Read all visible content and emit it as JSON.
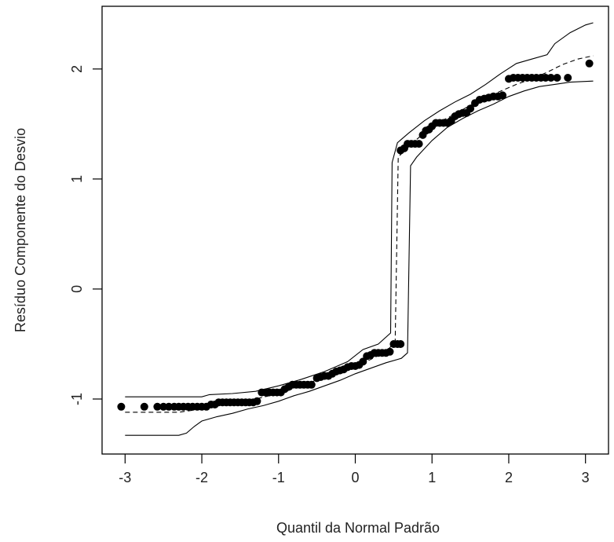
{
  "chart_data": {
    "type": "scatter",
    "title": "",
    "xlabel": "Quantil da Normal Padrão",
    "ylabel": "Resíduo Componente do Desvio",
    "xlim": [
      -3.3,
      3.3
    ],
    "ylim": [
      -1.5,
      2.57
    ],
    "xticks": [
      -3,
      -2,
      -1,
      0,
      1,
      2,
      3
    ],
    "yticks": [
      -1,
      0,
      1,
      2
    ],
    "xtick_labels": [
      "-3",
      "-2",
      "-1",
      "0",
      "1",
      "2",
      "3"
    ],
    "ytick_labels": [
      "-1",
      "0",
      "1",
      "2"
    ],
    "grid": false,
    "legend": "none",
    "point_color": "#000000",
    "line_color": "#000000",
    "points": [
      [
        -3.05,
        -1.07
      ],
      [
        -2.75,
        -1.07
      ],
      [
        -2.58,
        -1.07
      ],
      [
        -2.5,
        -1.07
      ],
      [
        -2.43,
        -1.07
      ],
      [
        -2.36,
        -1.07
      ],
      [
        -2.3,
        -1.07
      ],
      [
        -2.24,
        -1.07
      ],
      [
        -2.18,
        -1.07
      ],
      [
        -2.12,
        -1.07
      ],
      [
        -2.06,
        -1.07
      ],
      [
        -2.0,
        -1.07
      ],
      [
        -1.94,
        -1.07
      ],
      [
        -1.88,
        -1.05
      ],
      [
        -1.83,
        -1.05
      ],
      [
        -1.78,
        -1.03
      ],
      [
        -1.73,
        -1.03
      ],
      [
        -1.68,
        -1.03
      ],
      [
        -1.63,
        -1.03
      ],
      [
        -1.58,
        -1.03
      ],
      [
        -1.53,
        -1.03
      ],
      [
        -1.48,
        -1.03
      ],
      [
        -1.43,
        -1.03
      ],
      [
        -1.38,
        -1.03
      ],
      [
        -1.33,
        -1.03
      ],
      [
        -1.28,
        -1.02
      ],
      [
        -1.22,
        -0.94
      ],
      [
        -1.17,
        -0.94
      ],
      [
        -1.12,
        -0.94
      ],
      [
        -1.07,
        -0.94
      ],
      [
        -1.02,
        -0.94
      ],
      [
        -0.97,
        -0.94
      ],
      [
        -0.92,
        -0.91
      ],
      [
        -0.87,
        -0.89
      ],
      [
        -0.82,
        -0.87
      ],
      [
        -0.77,
        -0.87
      ],
      [
        -0.72,
        -0.87
      ],
      [
        -0.67,
        -0.87
      ],
      [
        -0.62,
        -0.87
      ],
      [
        -0.57,
        -0.87
      ],
      [
        -0.5,
        -0.81
      ],
      [
        -0.45,
        -0.8
      ],
      [
        -0.4,
        -0.79
      ],
      [
        -0.35,
        -0.79
      ],
      [
        -0.3,
        -0.77
      ],
      [
        -0.25,
        -0.75
      ],
      [
        -0.2,
        -0.74
      ],
      [
        -0.15,
        -0.73
      ],
      [
        -0.1,
        -0.71
      ],
      [
        -0.05,
        -0.7
      ],
      [
        0.0,
        -0.7
      ],
      [
        0.05,
        -0.69
      ],
      [
        0.1,
        -0.66
      ],
      [
        0.15,
        -0.61
      ],
      [
        0.2,
        -0.6
      ],
      [
        0.25,
        -0.58
      ],
      [
        0.3,
        -0.58
      ],
      [
        0.35,
        -0.58
      ],
      [
        0.4,
        -0.58
      ],
      [
        0.45,
        -0.57
      ],
      [
        0.5,
        -0.5
      ],
      [
        0.55,
        -0.5
      ],
      [
        0.59,
        -0.5
      ],
      [
        0.59,
        1.26
      ],
      [
        0.64,
        1.28
      ],
      [
        0.68,
        1.32
      ],
      [
        0.73,
        1.32
      ],
      [
        0.78,
        1.32
      ],
      [
        0.83,
        1.32
      ],
      [
        0.88,
        1.4
      ],
      [
        0.92,
        1.44
      ],
      [
        0.96,
        1.45
      ],
      [
        1.0,
        1.48
      ],
      [
        1.05,
        1.51
      ],
      [
        1.1,
        1.51
      ],
      [
        1.15,
        1.51
      ],
      [
        1.2,
        1.51
      ],
      [
        1.25,
        1.53
      ],
      [
        1.3,
        1.57
      ],
      [
        1.35,
        1.59
      ],
      [
        1.4,
        1.6
      ],
      [
        1.45,
        1.6
      ],
      [
        1.5,
        1.64
      ],
      [
        1.56,
        1.69
      ],
      [
        1.62,
        1.72
      ],
      [
        1.68,
        1.73
      ],
      [
        1.74,
        1.74
      ],
      [
        1.8,
        1.75
      ],
      [
        1.86,
        1.75
      ],
      [
        1.92,
        1.76
      ],
      [
        2.0,
        1.91
      ],
      [
        2.06,
        1.92
      ],
      [
        2.12,
        1.92
      ],
      [
        2.18,
        1.92
      ],
      [
        2.24,
        1.92
      ],
      [
        2.3,
        1.92
      ],
      [
        2.36,
        1.92
      ],
      [
        2.42,
        1.92
      ],
      [
        2.48,
        1.92
      ],
      [
        2.55,
        1.92
      ],
      [
        2.63,
        1.92
      ],
      [
        2.77,
        1.92
      ],
      [
        3.05,
        2.05
      ]
    ],
    "envelope_lower": [
      [
        -3.0,
        -1.33
      ],
      [
        -2.3,
        -1.33
      ],
      [
        -2.2,
        -1.31
      ],
      [
        -2.1,
        -1.25
      ],
      [
        -2.0,
        -1.2
      ],
      [
        -1.8,
        -1.16
      ],
      [
        -1.6,
        -1.13
      ],
      [
        -1.4,
        -1.09
      ],
      [
        -1.2,
        -1.06
      ],
      [
        -1.0,
        -1.02
      ],
      [
        -0.8,
        -0.97
      ],
      [
        -0.6,
        -0.93
      ],
      [
        -0.4,
        -0.88
      ],
      [
        -0.2,
        -0.83
      ],
      [
        0.0,
        -0.77
      ],
      [
        0.2,
        -0.72
      ],
      [
        0.4,
        -0.67
      ],
      [
        0.6,
        -0.63
      ],
      [
        0.68,
        -0.58
      ],
      [
        0.72,
        1.12
      ],
      [
        0.8,
        1.2
      ],
      [
        1.0,
        1.35
      ],
      [
        1.2,
        1.47
      ],
      [
        1.4,
        1.55
      ],
      [
        1.6,
        1.62
      ],
      [
        1.8,
        1.68
      ],
      [
        2.0,
        1.75
      ],
      [
        2.2,
        1.8
      ],
      [
        2.4,
        1.84
      ],
      [
        2.6,
        1.86
      ],
      [
        2.8,
        1.88
      ],
      [
        3.1,
        1.89
      ]
    ],
    "envelope_median": [
      [
        -3.0,
        -1.12
      ],
      [
        -2.3,
        -1.12
      ],
      [
        -2.1,
        -1.1
      ],
      [
        -1.9,
        -1.07
      ],
      [
        -1.6,
        -1.04
      ],
      [
        -1.3,
        -1.0
      ],
      [
        -1.0,
        -0.95
      ],
      [
        -0.7,
        -0.88
      ],
      [
        -0.4,
        -0.8
      ],
      [
        -0.1,
        -0.73
      ],
      [
        0.2,
        -0.64
      ],
      [
        0.4,
        -0.57
      ],
      [
        0.52,
        -0.48
      ],
      [
        0.56,
        1.2
      ],
      [
        0.7,
        1.3
      ],
      [
        0.9,
        1.42
      ],
      [
        1.1,
        1.52
      ],
      [
        1.3,
        1.59
      ],
      [
        1.5,
        1.67
      ],
      [
        1.7,
        1.74
      ],
      [
        1.9,
        1.8
      ],
      [
        2.1,
        1.86
      ],
      [
        2.3,
        1.91
      ],
      [
        2.5,
        1.97
      ],
      [
        2.7,
        2.04
      ],
      [
        2.9,
        2.09
      ],
      [
        3.1,
        2.12
      ]
    ],
    "envelope_upper": [
      [
        -3.0,
        -0.98
      ],
      [
        -2.0,
        -0.98
      ],
      [
        -1.9,
        -0.96
      ],
      [
        -1.6,
        -0.95
      ],
      [
        -1.3,
        -0.93
      ],
      [
        -1.0,
        -0.88
      ],
      [
        -0.7,
        -0.82
      ],
      [
        -0.4,
        -0.75
      ],
      [
        -0.1,
        -0.66
      ],
      [
        0.1,
        -0.55
      ],
      [
        0.3,
        -0.5
      ],
      [
        0.46,
        -0.4
      ],
      [
        0.48,
        1.15
      ],
      [
        0.55,
        1.33
      ],
      [
        0.7,
        1.42
      ],
      [
        0.9,
        1.53
      ],
      [
        1.1,
        1.62
      ],
      [
        1.3,
        1.7
      ],
      [
        1.5,
        1.77
      ],
      [
        1.7,
        1.86
      ],
      [
        1.9,
        1.96
      ],
      [
        2.1,
        2.05
      ],
      [
        2.3,
        2.09
      ],
      [
        2.5,
        2.13
      ],
      [
        2.6,
        2.23
      ],
      [
        2.8,
        2.33
      ],
      [
        3.0,
        2.4
      ],
      [
        3.1,
        2.42
      ]
    ]
  }
}
